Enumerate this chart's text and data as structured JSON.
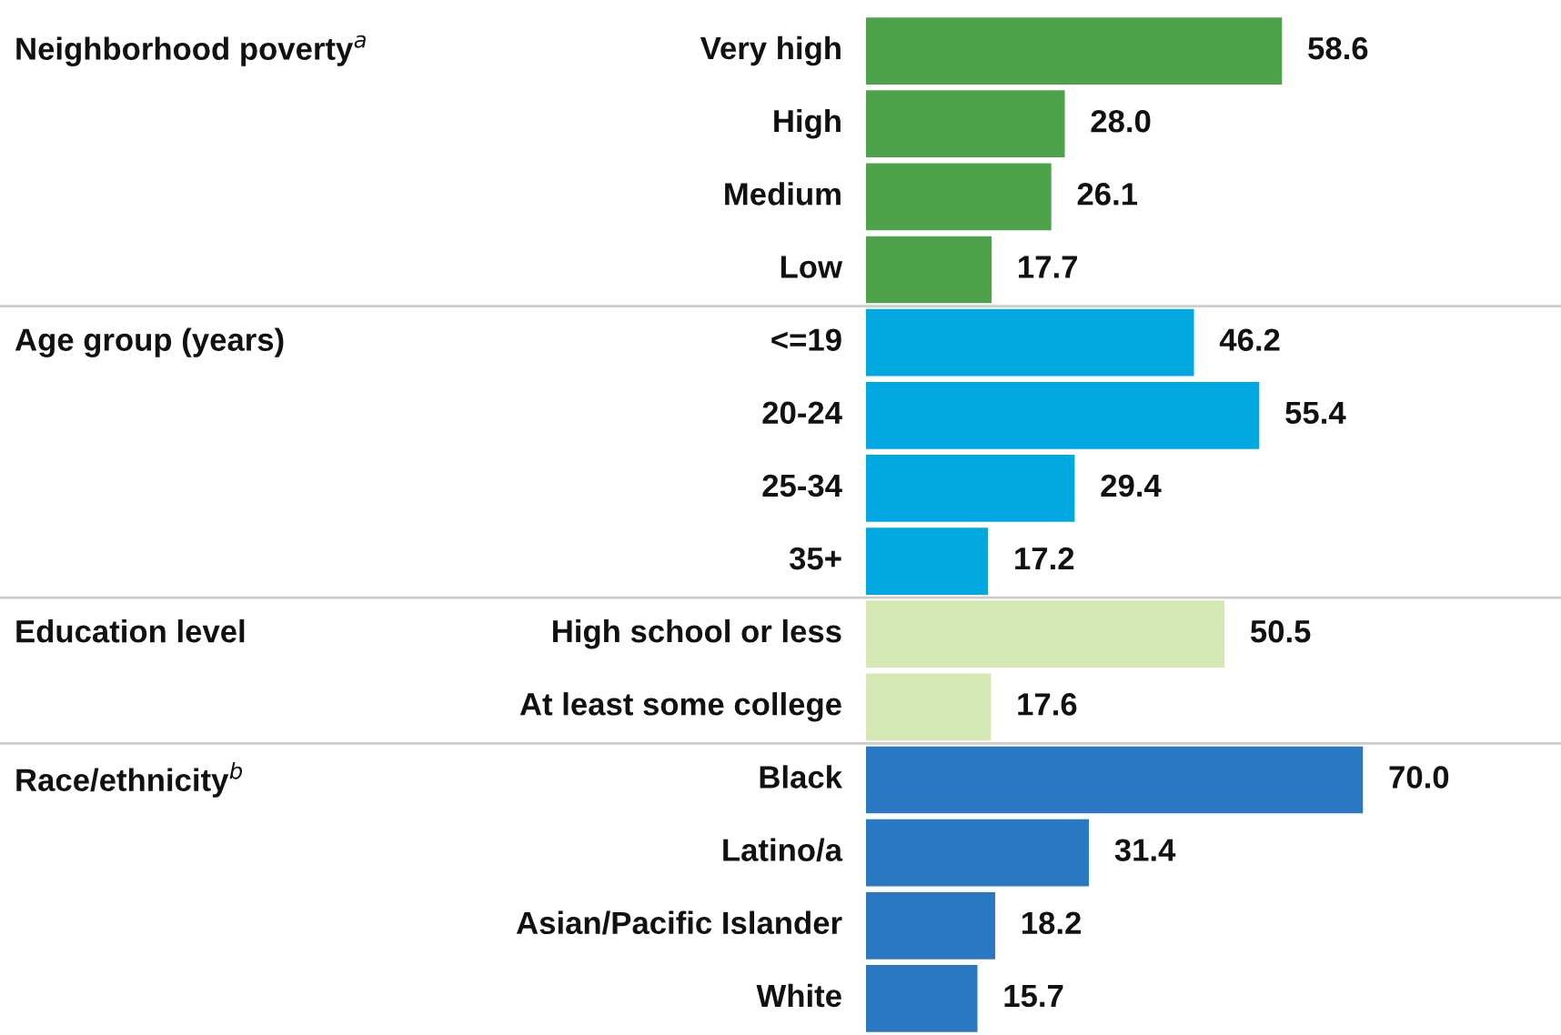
{
  "chart_data": {
    "type": "bar",
    "orientation": "horizontal",
    "value_labels": [
      "58.6",
      "28.0",
      "26.1",
      "17.7",
      "46.2",
      "55.4",
      "29.4",
      "17.2",
      "50.5",
      "17.6",
      "70.0",
      "31.4",
      "18.2",
      "15.7"
    ],
    "categories": [
      "Very high",
      "High",
      "Medium",
      "Low",
      "<=19",
      "20-24",
      "25-34",
      "35+",
      "High school or less",
      "At least some college",
      "Black",
      "Latino/a",
      "Asian/Pacific Islander",
      "White"
    ],
    "values": [
      58.6,
      28.0,
      26.1,
      17.7,
      46.2,
      55.4,
      29.4,
      17.2,
      50.5,
      17.6,
      70.0,
      31.4,
      18.2,
      15.7
    ],
    "colors": [
      "#4ea24a",
      "#4ea24a",
      "#4ea24a",
      "#4ea24a",
      "#00a8e0",
      "#00a8e0",
      "#00a8e0",
      "#00a8e0",
      "#d4e8b4",
      "#d4e8b4",
      "#2a78c2",
      "#2a78c2",
      "#2a78c2",
      "#2a78c2"
    ],
    "annotations": [
      "Neighborhood poverty$^{a}$",
      "Age group (years)",
      "Education level",
      "Race/ethnicity$^{b}$"
    ]
  }
}
